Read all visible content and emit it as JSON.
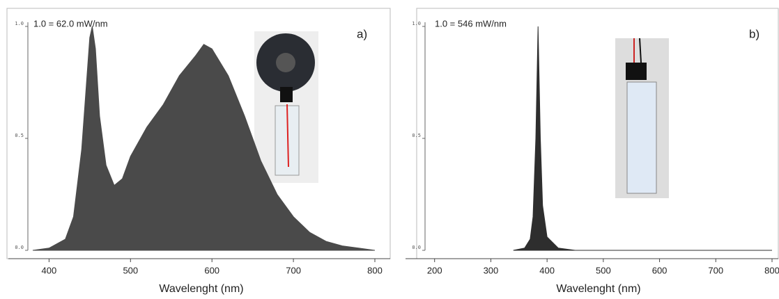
{
  "chart_data": [
    {
      "type": "area",
      "annotation": "1.0 = 62.0 mW/nm",
      "label": "a)",
      "x_label": "Wavelenght (nm)",
      "x": [
        380,
        400,
        420,
        430,
        440,
        445,
        450,
        453,
        457,
        462,
        470,
        480,
        490,
        500,
        520,
        540,
        560,
        580,
        590,
        600,
        620,
        640,
        660,
        680,
        700,
        720,
        740,
        760,
        780,
        800
      ],
      "series": [
        {
          "color": "#4a4a4a",
          "values": [
            0,
            0.01,
            0.05,
            0.15,
            0.45,
            0.7,
            0.95,
            1.0,
            0.9,
            0.6,
            0.38,
            0.29,
            0.32,
            0.42,
            0.55,
            0.65,
            0.78,
            0.87,
            0.92,
            0.9,
            0.78,
            0.6,
            0.4,
            0.25,
            0.15,
            0.08,
            0.04,
            0.02,
            0.01,
            0
          ]
        }
      ],
      "xlim": [
        374,
        800
      ],
      "xticks": [
        400,
        500,
        600,
        700,
        800
      ],
      "ylim": [
        0,
        1
      ],
      "yticks": [
        {
          "value": 0,
          "label": "0.0"
        },
        0.5,
        {
          "value": 1,
          "label": "1.0"
        }
      ]
    },
    {
      "type": "area",
      "annotation": "1.0 = 546 mW/nm",
      "label": "b)",
      "x_label": "Wavelenght (nm)",
      "x": [
        340,
        360,
        370,
        375,
        380,
        384,
        388,
        392,
        400,
        420,
        450,
        800
      ],
      "series": [
        {
          "color": "#2e2e2e",
          "values": [
            0,
            0.01,
            0.05,
            0.15,
            0.5,
            1.0,
            0.5,
            0.2,
            0.06,
            0.01,
            0,
            0
          ]
        }
      ],
      "xlim": [
        183,
        800
      ],
      "xticks": [
        200,
        300,
        400,
        500,
        600,
        700,
        800
      ],
      "ylim": [
        0,
        1
      ],
      "yticks": [
        {
          "value": 0,
          "label": "0.0"
        },
        0.5,
        {
          "value": 1,
          "label": "1.0"
        }
      ]
    }
  ]
}
